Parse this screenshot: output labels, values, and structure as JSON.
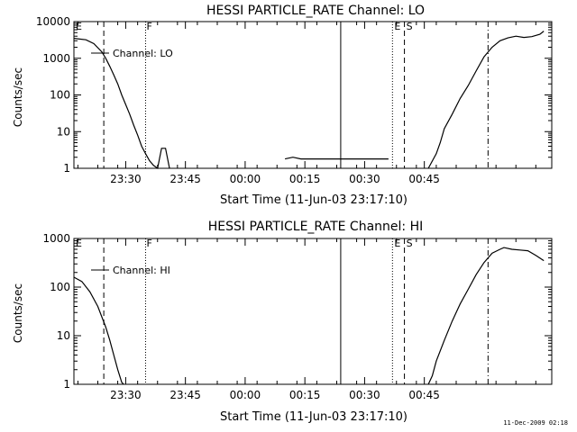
{
  "footer": {
    "timestamp": "11-Dec-2009 02:18"
  },
  "chart_data": [
    {
      "type": "line",
      "title": "HESSI PARTICLE_RATE Channel: LO",
      "xlabel": "Start Time (11-Jun-03 23:17:10)",
      "ylabel": "Counts/sec",
      "y_scale": "log",
      "ylim": [
        1,
        10000
      ],
      "y_ticks": [
        "10000",
        "1000",
        "100",
        "10",
        "1"
      ],
      "x_ticks": [
        "23:30",
        "23:45",
        "00:00",
        "00:15",
        "00:30",
        "00:45"
      ],
      "legend": "Channel: LO",
      "markers": [
        {
          "label": "E",
          "style": "dashed"
        },
        {
          "label": "F",
          "style": "dotted"
        },
        {
          "label": "",
          "style": "solid"
        },
        {
          "label": "E",
          "style": "dotted"
        },
        {
          "label": "S",
          "style": "dashed"
        },
        {
          "label": "",
          "style": "dashdot"
        }
      ],
      "series": [
        {
          "x_minutes": [
            0,
            3,
            5,
            7,
            8,
            9,
            10,
            11,
            12,
            13,
            14,
            15,
            16,
            17,
            18,
            19,
            20,
            21,
            22,
            23,
            24
          ],
          "values": [
            3500,
            3200,
            2500,
            1500,
            1000,
            600,
            350,
            200,
            100,
            55,
            30,
            15,
            8,
            4,
            2.5,
            1.6,
            1.2,
            1,
            3.5,
            3.5,
            1
          ]
        },
        {
          "x_minutes": [
            53,
            55,
            57,
            59,
            61,
            62,
            64,
            66,
            68,
            70,
            72,
            73,
            75,
            77,
            79
          ],
          "values": [
            1.8,
            2,
            1.8,
            1.8,
            1.8,
            1.8,
            1.8,
            1.8,
            1.8,
            1.8,
            1.8,
            1.8,
            1.8,
            1.8,
            1.8
          ]
        },
        {
          "x_minutes": [
            89,
            91,
            92,
            93,
            95,
            97,
            99,
            101,
            103,
            105,
            107,
            109,
            111,
            113,
            115,
            117,
            118
          ],
          "values": [
            1,
            2.5,
            5,
            12,
            30,
            80,
            180,
            450,
            1100,
            2000,
            3000,
            3600,
            4000,
            3700,
            3900,
            4500,
            5500
          ]
        }
      ]
    },
    {
      "type": "line",
      "title": "HESSI PARTICLE_RATE Channel: HI",
      "xlabel": "Start Time (11-Jun-03 23:17:10)",
      "ylabel": "Counts/sec",
      "y_scale": "log",
      "ylim": [
        1,
        1000
      ],
      "y_ticks": [
        "1000",
        "100",
        "10",
        "1"
      ],
      "x_ticks": [
        "23:30",
        "23:45",
        "00:00",
        "00:15",
        "00:30",
        "00:45"
      ],
      "legend": "Channel: HI",
      "markers": [
        {
          "label": "E",
          "style": "dashed"
        },
        {
          "label": "F",
          "style": "dotted"
        },
        {
          "label": "",
          "style": "solid"
        },
        {
          "label": "E",
          "style": "dotted"
        },
        {
          "label": "S",
          "style": "dashed"
        },
        {
          "label": "",
          "style": "dashdot"
        }
      ],
      "series": [
        {
          "x_minutes": [
            0,
            2,
            4,
            6,
            8,
            9,
            10,
            11,
            12,
            12.5
          ],
          "values": [
            160,
            130,
            80,
            40,
            15,
            8,
            4,
            2,
            1.1,
            1
          ]
        },
        {
          "x_minutes": [
            89,
            90,
            91,
            93,
            95,
            97,
            99,
            101,
            103,
            105,
            107,
            108,
            110,
            112,
            114,
            116,
            118
          ],
          "values": [
            1,
            1.5,
            3,
            8,
            20,
            45,
            90,
            180,
            320,
            500,
            600,
            650,
            600,
            580,
            560,
            450,
            350
          ]
        }
      ]
    }
  ]
}
